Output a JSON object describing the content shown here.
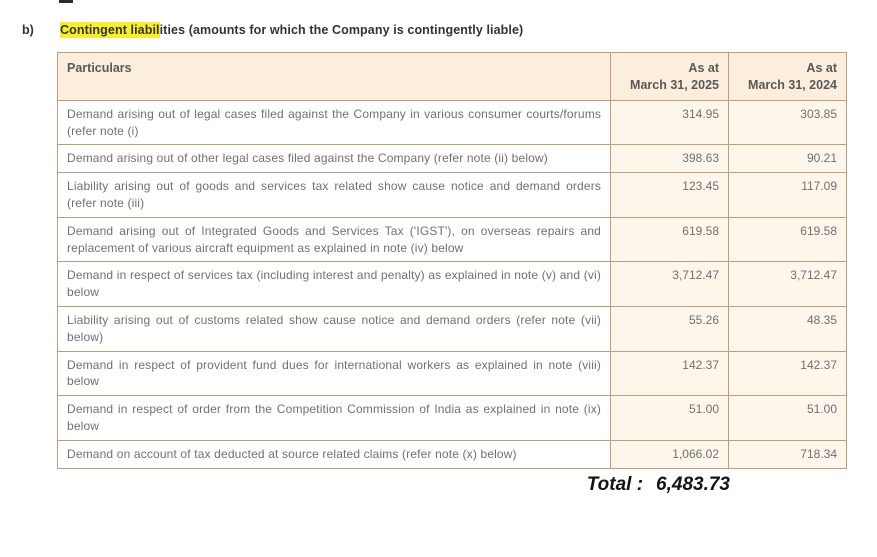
{
  "page": {
    "section_label": "b)",
    "heading": {
      "highlighted": "Contingent liabil",
      "rest": "ities (amounts for which the Company is contingently liable)"
    },
    "highlight_color": "#f7ef2b"
  },
  "table": {
    "border_color": "#c49a7c",
    "header_bg": "#fceedd",
    "value_col_bg": "#fdf6eb",
    "headers": {
      "particulars": "Particulars",
      "col_2025": "As at\nMarch 31, 2025",
      "col_2024": "As at\nMarch 31, 2024"
    },
    "rows": [
      {
        "particulars": "Demand arising out of legal cases filed against the Company in various consumer courts/forums (refer note (i)",
        "v2025": "314.95",
        "v2024": "303.85"
      },
      {
        "particulars": "Demand arising out of other legal cases filed against the Company (refer note (ii) below)",
        "v2025": "398.63",
        "v2024": "90.21"
      },
      {
        "particulars": "Liability arising out of goods and services tax related show cause notice and demand orders (refer note (iii)",
        "v2025": "123.45",
        "v2024": "117.09"
      },
      {
        "particulars": "Demand arising out of Integrated Goods and Services Tax ('IGST'), on overseas repairs and replacement of various aircraft equipment as explained in note (iv) below",
        "v2025": "619.58",
        "v2024": "619.58"
      },
      {
        "particulars": "Demand in respect of services tax (including interest and penalty) as explained in note (v) and (vi) below",
        "v2025": "3,712.47",
        "v2024": "3,712.47"
      },
      {
        "particulars": "Liability arising out of customs related show cause notice and demand orders (refer note (vii) below)",
        "v2025": "55.26",
        "v2024": "48.35"
      },
      {
        "particulars": "Demand in respect of provident fund dues for international workers as explained in note (viii) below",
        "v2025": "142.37",
        "v2024": "142.37"
      },
      {
        "particulars": "Demand in respect of order from the Competition Commission of India as explained in note (ix) below",
        "v2025": "51.00",
        "v2024": "51.00"
      },
      {
        "particulars": "Demand on account of tax deducted at source related claims (refer note (x) below)",
        "v2025": "1,066.02",
        "v2024": "718.34"
      }
    ]
  },
  "total": {
    "label": "Total :",
    "value": "6,483.73"
  }
}
